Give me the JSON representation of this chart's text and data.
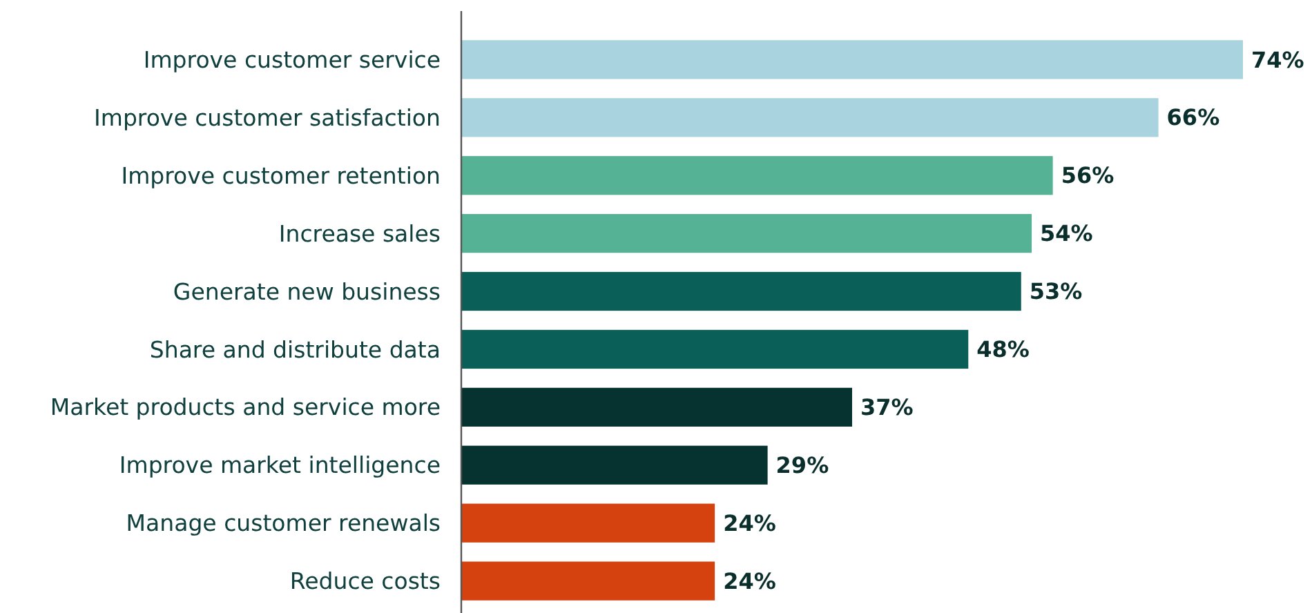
{
  "chart_data": {
    "type": "bar",
    "orientation": "horizontal",
    "categories": [
      "Improve customer service",
      "Improve customer satisfaction",
      "Improve customer retention",
      "Increase sales",
      "Generate new business",
      "Share and distribute data",
      "Market products and service more",
      "Improve market intelligence",
      "Manage customer renewals",
      "Reduce costs"
    ],
    "values": [
      74,
      66,
      56,
      54,
      53,
      48,
      37,
      29,
      24,
      24
    ],
    "value_labels": [
      "74%",
      "66%",
      "56%",
      "54%",
      "53%",
      "48%",
      "37%",
      "29%",
      "24%",
      "24%"
    ],
    "colors": [
      "#a9d4df",
      "#a9d4df",
      "#55b295",
      "#55b295",
      "#0a5f58",
      "#0a5f58",
      "#06332f",
      "#06332f",
      "#d6420f",
      "#d6420f"
    ],
    "xlim": [
      0,
      74
    ],
    "tick_labels": "y"
  }
}
